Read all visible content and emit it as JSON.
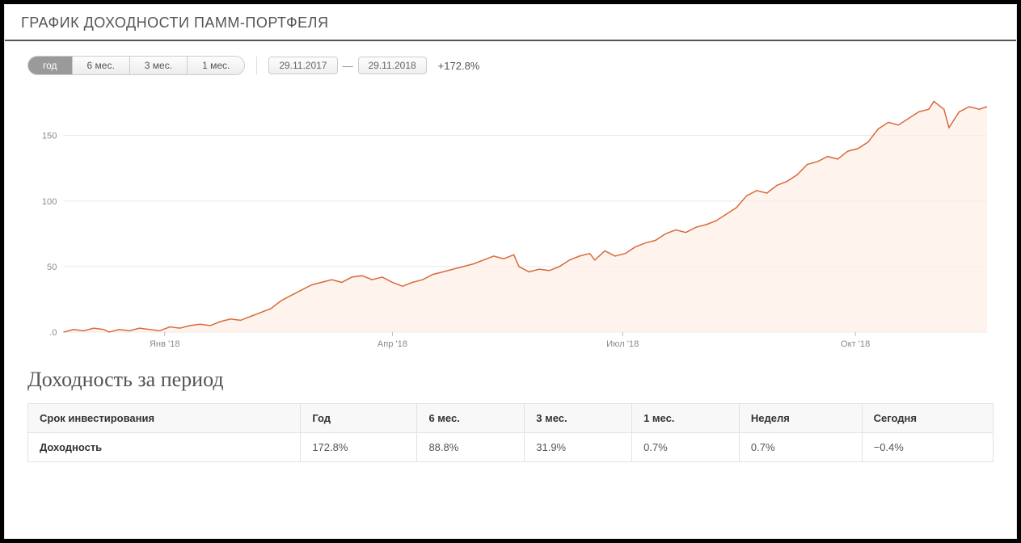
{
  "title": "ГРАФИК ДОХОДНОСТИ ПАММ-ПОРТФЕЛЯ",
  "controls": {
    "periods": [
      {
        "label": "год",
        "active": true
      },
      {
        "label": "6 мес.",
        "active": false
      },
      {
        "label": "3 мес.",
        "active": false
      },
      {
        "label": "1 мес.",
        "active": false
      }
    ],
    "date_from": "29.11.2017",
    "date_to": "29.11.2018",
    "total_return": "+172.8%"
  },
  "chart": {
    "type": "area",
    "line_color": "#d96a3b",
    "fill_color": "#fdece4",
    "fill_opacity": 0.65,
    "grid_color": "#e8e8e8",
    "axis_color": "#bdbdbd",
    "background_color": "#ffffff",
    "tick_font_size": 11,
    "tick_color": "#8a8a8a",
    "ylim": [
      0,
      180
    ],
    "yticks": [
      0,
      50,
      100,
      150
    ],
    "xlim": [
      0,
      365
    ],
    "x_axis_ticks": [
      {
        "pos": 40,
        "label": "Янв '18"
      },
      {
        "pos": 130,
        "label": "Апр '18"
      },
      {
        "pos": 221,
        "label": "Июл '18"
      },
      {
        "pos": 313,
        "label": "Окт '18"
      }
    ],
    "data": [
      [
        0,
        0
      ],
      [
        4,
        2
      ],
      [
        8,
        1
      ],
      [
        12,
        3
      ],
      [
        16,
        2
      ],
      [
        18,
        0
      ],
      [
        22,
        2
      ],
      [
        26,
        1
      ],
      [
        30,
        3
      ],
      [
        34,
        2
      ],
      [
        38,
        1
      ],
      [
        42,
        4
      ],
      [
        46,
        3
      ],
      [
        50,
        5
      ],
      [
        54,
        6
      ],
      [
        58,
        5
      ],
      [
        62,
        8
      ],
      [
        66,
        10
      ],
      [
        70,
        9
      ],
      [
        74,
        12
      ],
      [
        78,
        15
      ],
      [
        82,
        18
      ],
      [
        86,
        24
      ],
      [
        90,
        28
      ],
      [
        94,
        32
      ],
      [
        98,
        36
      ],
      [
        102,
        38
      ],
      [
        106,
        40
      ],
      [
        110,
        38
      ],
      [
        114,
        42
      ],
      [
        118,
        43
      ],
      [
        122,
        40
      ],
      [
        126,
        42
      ],
      [
        130,
        38
      ],
      [
        134,
        35
      ],
      [
        138,
        38
      ],
      [
        142,
        40
      ],
      [
        146,
        44
      ],
      [
        150,
        46
      ],
      [
        154,
        48
      ],
      [
        158,
        50
      ],
      [
        162,
        52
      ],
      [
        166,
        55
      ],
      [
        170,
        58
      ],
      [
        174,
        56
      ],
      [
        178,
        59
      ],
      [
        180,
        50
      ],
      [
        184,
        46
      ],
      [
        188,
        48
      ],
      [
        192,
        47
      ],
      [
        196,
        50
      ],
      [
        200,
        55
      ],
      [
        204,
        58
      ],
      [
        208,
        60
      ],
      [
        210,
        55
      ],
      [
        214,
        62
      ],
      [
        218,
        58
      ],
      [
        222,
        60
      ],
      [
        226,
        65
      ],
      [
        230,
        68
      ],
      [
        234,
        70
      ],
      [
        238,
        75
      ],
      [
        242,
        78
      ],
      [
        246,
        76
      ],
      [
        250,
        80
      ],
      [
        254,
        82
      ],
      [
        258,
        85
      ],
      [
        262,
        90
      ],
      [
        266,
        95
      ],
      [
        270,
        104
      ],
      [
        274,
        108
      ],
      [
        278,
        106
      ],
      [
        282,
        112
      ],
      [
        286,
        115
      ],
      [
        290,
        120
      ],
      [
        294,
        128
      ],
      [
        298,
        130
      ],
      [
        302,
        134
      ],
      [
        306,
        132
      ],
      [
        310,
        138
      ],
      [
        314,
        140
      ],
      [
        318,
        145
      ],
      [
        322,
        155
      ],
      [
        326,
        160
      ],
      [
        330,
        158
      ],
      [
        334,
        163
      ],
      [
        338,
        168
      ],
      [
        342,
        170
      ],
      [
        344,
        176
      ],
      [
        348,
        170
      ],
      [
        350,
        156
      ],
      [
        354,
        168
      ],
      [
        358,
        172
      ],
      [
        362,
        170
      ],
      [
        365,
        172
      ]
    ]
  },
  "section_title": "Доходность за период",
  "table": {
    "columns": [
      "Срок инвестирования",
      "Год",
      "6 мес.",
      "3 мес.",
      "1 мес.",
      "Неделя",
      "Сегодня"
    ],
    "rows": [
      [
        "Доходность",
        "172.8%",
        "88.8%",
        "31.9%",
        "0.7%",
        "0.7%",
        "−0.4%"
      ]
    ]
  }
}
